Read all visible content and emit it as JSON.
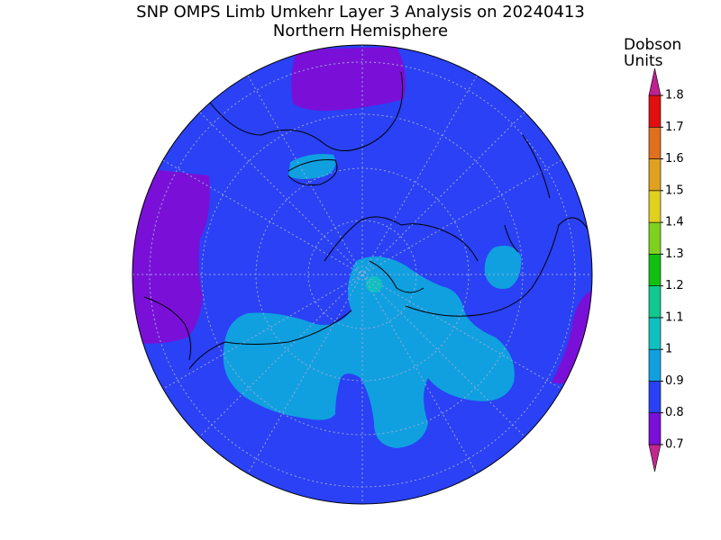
{
  "title": "SNP OMPS Limb Umkehr Layer 3 Analysis on 20240413",
  "subtitle": "Northern Hemisphere",
  "colorbar": {
    "label": [
      "Dobson",
      "Units"
    ],
    "ticks": [
      0.7,
      0.8,
      0.9,
      1,
      1.1,
      1.2,
      1.3,
      1.4,
      1.5,
      1.6,
      1.7,
      1.8
    ],
    "colors": [
      "#c02890",
      "#7a10d8",
      "#2a41f5",
      "#10a0e0",
      "#10c0c0",
      "#10c890",
      "#10c010",
      "#80d020",
      "#e0d020",
      "#e0a020",
      "#e07020",
      "#e01010",
      "#c02090"
    ]
  }
}
